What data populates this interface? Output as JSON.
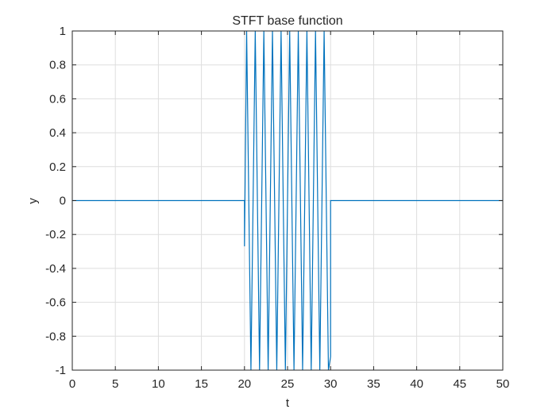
{
  "chart_data": {
    "type": "line",
    "title": "STFT base function",
    "xlabel": "t",
    "ylabel": "y",
    "xlim": [
      0,
      50
    ],
    "ylim": [
      -1,
      1
    ],
    "xticks": [
      0,
      5,
      10,
      15,
      20,
      25,
      30,
      35,
      40,
      45,
      50
    ],
    "yticks": [
      -1,
      -0.8,
      -0.6,
      -0.4,
      -0.2,
      0,
      0.2,
      0.4,
      0.6,
      0.8,
      1
    ],
    "xtick_labels": [
      "0",
      "5",
      "10",
      "15",
      "20",
      "25",
      "30",
      "35",
      "40",
      "45",
      "50"
    ],
    "ytick_labels": [
      "-1",
      "-0.8",
      "-0.6",
      "-0.4",
      "-0.2",
      "0",
      "0.2",
      "0.4",
      "0.6",
      "0.8",
      "1"
    ],
    "grid": true,
    "line_color": "#0072BD",
    "series": [
      {
        "x": [
          0,
          20,
          20,
          20.25,
          20.75,
          21.25,
          21.75,
          22.25,
          22.75,
          23.25,
          23.75,
          24.25,
          24.75,
          25.25,
          25.75,
          26.25,
          26.75,
          27.25,
          27.75,
          28.25,
          28.75,
          29.25,
          29.75,
          30,
          30,
          50
        ],
        "y": [
          0,
          0,
          -0.27,
          1,
          -1,
          1,
          -1,
          1,
          -1,
          1,
          -1,
          1,
          -1,
          1,
          -1,
          1,
          -1,
          1,
          -1,
          1,
          -1,
          1,
          -1,
          -0.92,
          0,
          0
        ]
      }
    ]
  }
}
